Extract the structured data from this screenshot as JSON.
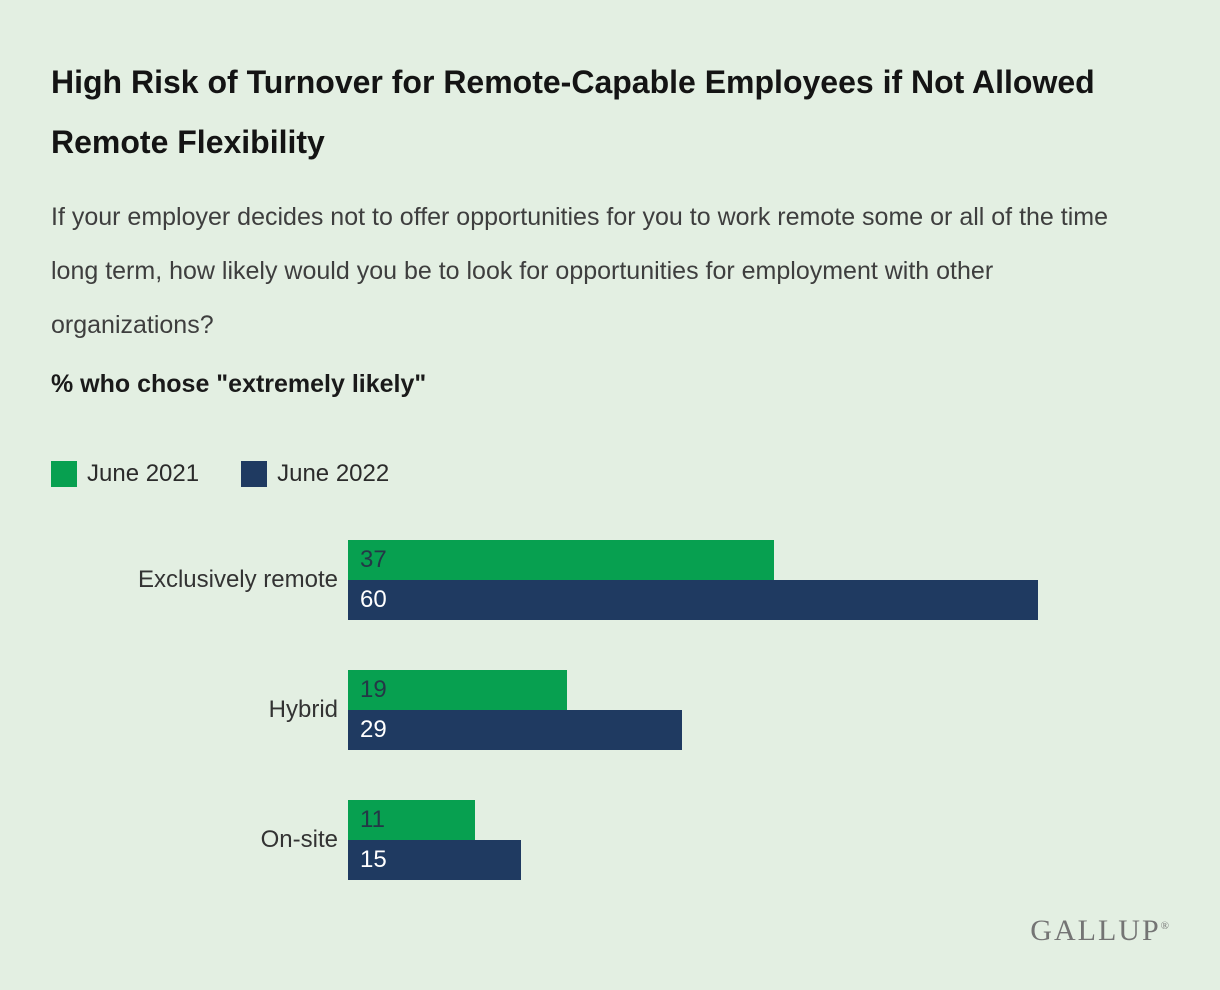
{
  "header": {
    "title": "High Risk of Turnover for Remote-Capable Employees if Not Allowed Remote Flexibility",
    "question": "If your employer decides not to offer opportunities for you to work remote some or all of the time long term, how likely would you be to look for opportunities for employment with other organizations?",
    "measure": "% who chose \"extremely likely\""
  },
  "chart_data": {
    "type": "bar",
    "orientation": "horizontal",
    "title": "High Risk of Turnover for Remote-Capable Employees if Not Allowed Remote Flexibility",
    "subtitle": "% who chose \"extremely likely\"",
    "categories": [
      "Exclusively remote",
      "Hybrid",
      "On-site"
    ],
    "series": [
      {
        "name": "June 2021",
        "color": "#07a050",
        "label_color": "#243746",
        "values": [
          37,
          19,
          11
        ]
      },
      {
        "name": "June 2022",
        "color": "#1f3a61",
        "label_color": "#ffffff",
        "values": [
          60,
          29,
          15
        ]
      }
    ],
    "xmax": 60,
    "value_labels": "inside-start",
    "legend_position": "top-left",
    "grid": false,
    "background": "#e3efe2"
  },
  "footer": {
    "brand": "GALLUP",
    "registered": "®"
  }
}
